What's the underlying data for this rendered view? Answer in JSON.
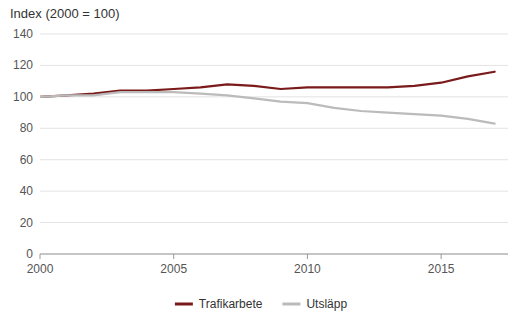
{
  "chart_data": {
    "type": "line",
    "title": "Index (2000 = 100)",
    "x": [
      2000,
      2001,
      2002,
      2003,
      2004,
      2005,
      2006,
      2007,
      2008,
      2009,
      2010,
      2011,
      2012,
      2013,
      2014,
      2015,
      2016,
      2017
    ],
    "series": [
      {
        "name": "Trafikarbete",
        "color": "#7B1A1A",
        "values": [
          100,
          101,
          102,
          104,
          104,
          105,
          106,
          108,
          107,
          105,
          106,
          106,
          106,
          106,
          107,
          109,
          113,
          116
        ]
      },
      {
        "name": "Utsläpp",
        "color": "#BBBBBB",
        "values": [
          100,
          101,
          101,
          103,
          103,
          103,
          102,
          101,
          99,
          97,
          96,
          93,
          91,
          90,
          89,
          88,
          86,
          83
        ]
      }
    ],
    "xlim": [
      2000,
      2017.5
    ],
    "xticks": [
      2000,
      2005,
      2010,
      2015
    ],
    "ylim": [
      0,
      140
    ],
    "yticks": [
      0,
      20,
      40,
      60,
      80,
      100,
      120,
      140
    ],
    "grid": true,
    "legend": "bottom"
  }
}
